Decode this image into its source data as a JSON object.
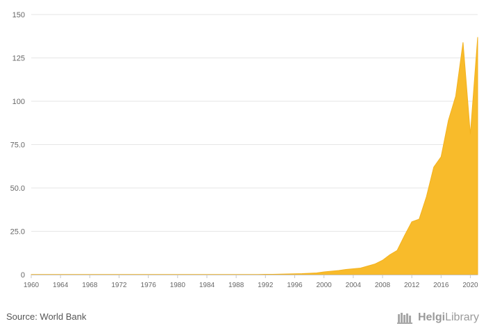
{
  "chart_data": {
    "type": "area",
    "x": [
      1960,
      1961,
      1962,
      1963,
      1964,
      1965,
      1966,
      1967,
      1968,
      1969,
      1970,
      1971,
      1972,
      1973,
      1974,
      1975,
      1976,
      1977,
      1978,
      1979,
      1980,
      1981,
      1982,
      1983,
      1984,
      1985,
      1986,
      1987,
      1988,
      1989,
      1990,
      1991,
      1992,
      1993,
      1994,
      1995,
      1996,
      1997,
      1998,
      1999,
      2000,
      2001,
      2002,
      2003,
      2004,
      2005,
      2006,
      2007,
      2008,
      2009,
      2010,
      2011,
      2012,
      2013,
      2014,
      2015,
      2016,
      2017,
      2018,
      2019,
      2020,
      2021
    ],
    "series": [
      {
        "values": [
          0.1,
          0.1,
          0.1,
          0.1,
          0.1,
          0.1,
          0.1,
          0.1,
          0.1,
          0.1,
          0.1,
          0.1,
          0.1,
          0.1,
          0.1,
          0.1,
          0.1,
          0.1,
          0.1,
          0.1,
          0.1,
          0.1,
          0.1,
          0.1,
          0.1,
          0.1,
          0.1,
          0.1,
          0.1,
          0.1,
          0.1,
          0.1,
          0.2,
          0.2,
          0.3,
          0.4,
          0.5,
          0.6,
          0.8,
          1.0,
          1.6,
          2.0,
          2.4,
          3.0,
          3.4,
          3.8,
          5.0,
          6.2,
          8.3,
          11.5,
          14.0,
          22.5,
          30.5,
          32.0,
          45.0,
          62.0,
          68.0,
          89.0,
          103.0,
          134.0,
          81.0,
          137.0
        ]
      }
    ],
    "yticks": [
      "0",
      "25.0",
      "50.0",
      "75.0",
      "100",
      "125",
      "150"
    ],
    "xticks": [
      "1960",
      "1964",
      "1968",
      "1972",
      "1976",
      "1980",
      "1984",
      "1988",
      "1992",
      "1996",
      "2000",
      "2004",
      "2008",
      "2012",
      "2016",
      "2020"
    ],
    "ylim": [
      0,
      150
    ],
    "xlim": [
      1960,
      2021
    ],
    "grid": true,
    "color": "#f8bb2b"
  },
  "footer": {
    "source": "Source: World Bank",
    "logo_part1": "Helgi",
    "logo_part2": "Library"
  }
}
